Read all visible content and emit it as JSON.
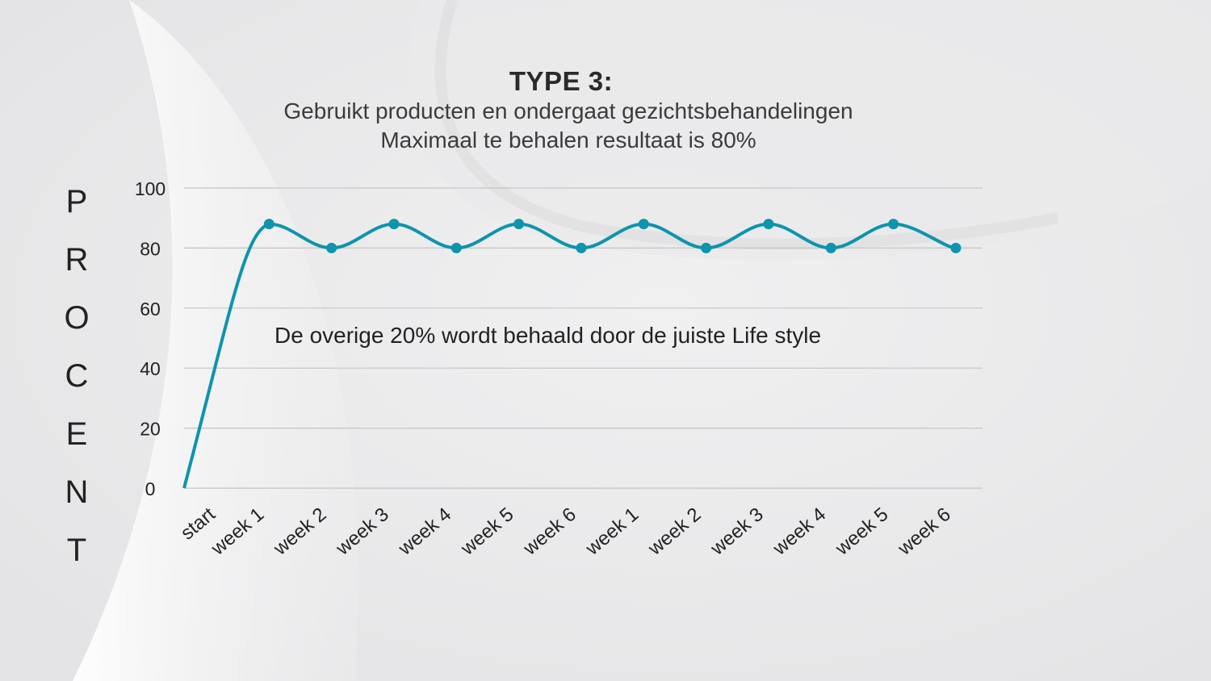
{
  "chart_data": {
    "type": "line",
    "title": "TYPE 3:",
    "subtitle": [
      "Gebruikt producten en ondergaat gezichtsbehandelingen",
      "Maximaal te behalen resultaat is 80%"
    ],
    "ylabel": "PROCENT",
    "xlabel": "",
    "categories": [
      "start",
      "week 1",
      "week 2",
      "week 3",
      "week 4",
      "week 5",
      "week 6",
      "week 1",
      "week 2",
      "week 3",
      "week 4",
      "week 5",
      "week 6"
    ],
    "series": [
      {
        "values": [
          0,
          88,
          80,
          88,
          80,
          88,
          80,
          88,
          80,
          88,
          80,
          88,
          80
        ],
        "color": "#0e94ad",
        "smooth": true,
        "markers": true
      }
    ],
    "ylim": [
      0,
      100
    ],
    "yticks": [
      0,
      20,
      40,
      60,
      80,
      100
    ],
    "grid": true,
    "annotation": "De overige 20% wordt behaald door de juiste Life style"
  },
  "colors": {
    "line": "#0e94ad",
    "grid": "#c4c4c4",
    "text": "#222222"
  }
}
